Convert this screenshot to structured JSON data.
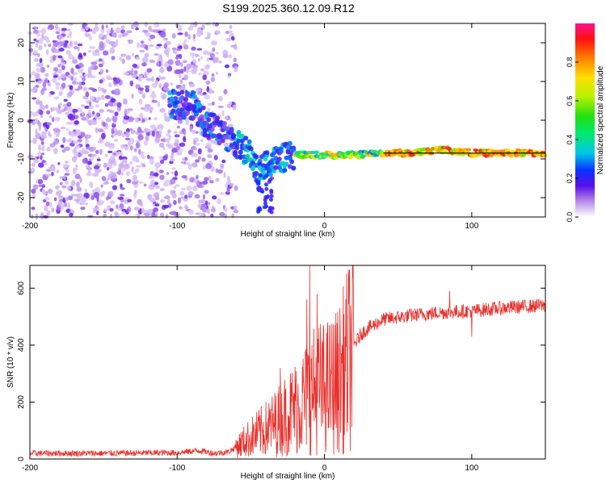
{
  "title": "S199.2025.360.12.09.R12",
  "chart_data": [
    {
      "type": "heatmap",
      "name": "spectrogram",
      "xlabel": "Height of straight line (km)",
      "ylabel": "Frequency (Hz)",
      "xlim": [
        -200,
        150
      ],
      "ylim": [
        -25,
        25
      ],
      "xticks": [
        -200,
        -100,
        0,
        100
      ],
      "yticks": [
        -20,
        -10,
        0,
        10,
        20
      ],
      "reference_line_y": -8.5,
      "ridge": {
        "x": [
          -100,
          -90,
          -80,
          -70,
          -60,
          -50,
          -45,
          -40,
          -30,
          -20,
          -10,
          0,
          10,
          20,
          40,
          60,
          80,
          90,
          100,
          120,
          150
        ],
        "y": [
          4,
          4,
          -1,
          -3,
          -6,
          -9,
          -14,
          -11,
          -10,
          -9,
          -9,
          -9,
          -9,
          -9,
          -8.5,
          -8.5,
          -7.5,
          -8,
          -8.5,
          -8.5,
          -8.5
        ]
      },
      "colorbar": {
        "label": "Normalized spectral amplitude",
        "range": [
          0,
          1
        ],
        "ticks": [
          "0.0",
          "0.2",
          "0.4",
          "0.6",
          "0.8"
        ]
      }
    },
    {
      "type": "line",
      "name": "snr",
      "xlabel": "Height of straight line (km)",
      "ylabel": "SNR (10 * v/v)",
      "xlim": [
        -200,
        150
      ],
      "ylim": [
        0,
        680
      ],
      "xticks": [
        -200,
        -100,
        0,
        100
      ],
      "yticks": [
        0,
        200,
        400,
        600
      ],
      "color": "#e8302c",
      "series": [
        {
          "name": "SNR",
          "x": [
            -200,
            -150,
            -100,
            -85,
            -75,
            -65,
            -55,
            -45,
            -35,
            -25,
            -15,
            -10,
            -5,
            0,
            5,
            10,
            15,
            20,
            25,
            30,
            40,
            60,
            80,
            100,
            120,
            150
          ],
          "y": [
            20,
            20,
            22,
            30,
            20,
            25,
            60,
            90,
            120,
            160,
            200,
            230,
            250,
            250,
            260,
            280,
            340,
            400,
            440,
            460,
            490,
            505,
            515,
            520,
            530,
            540
          ]
        }
      ],
      "spikes": [
        {
          "x": -10,
          "y": 680
        },
        {
          "x": -5,
          "y": 580
        },
        {
          "x": -12,
          "y": 560
        },
        {
          "x": -30,
          "y": 320
        },
        {
          "x": 100,
          "y": 430
        },
        {
          "x": 85,
          "y": 590
        }
      ]
    }
  ]
}
